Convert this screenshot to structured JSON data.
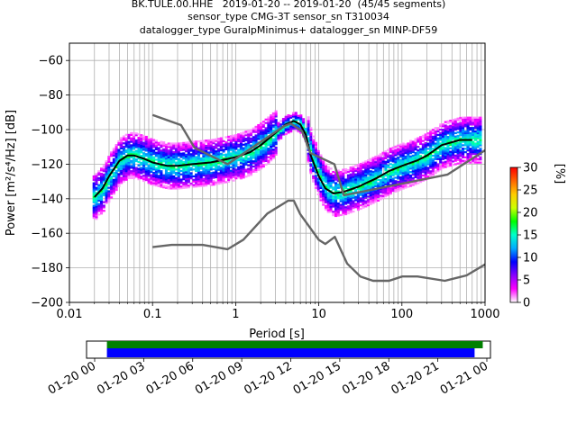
{
  "title": {
    "line1": "BK.TULE.00.HHE   2019-01-20 -- 2019-01-20  (45/45 segments)",
    "line2": "sensor_type CMG-3T sensor_sn T310034",
    "line3": "datalogger_type GuralpMinimus+ datalogger_sn MINP-DF59"
  },
  "colorbar": {
    "label": "[%]",
    "ticks": [
      "0",
      "5",
      "10",
      "15",
      "20",
      "25",
      "30"
    ],
    "stops": [
      "#ffffff",
      "#ff00ff",
      "#8800ff",
      "#0000ff",
      "#00aaff",
      "#00ffcc",
      "#00ff00",
      "#ccff00",
      "#ffcc00",
      "#ff6600",
      "#ff0000"
    ]
  },
  "timeline": {
    "ticks": [
      "01-20 00",
      "01-20 03",
      "01-20 06",
      "01-20 09",
      "01-20 12",
      "01-20 15",
      "01-20 18",
      "01-20 21",
      "01-21 00"
    ],
    "bar_green": {
      "start_hour": 0.75,
      "end_hour": 23.75,
      "color": "#008000"
    },
    "bar_blue": {
      "start_hour": 0.75,
      "end_hour": 23.25,
      "color": "#0000ff"
    }
  },
  "chart_data": {
    "type": "heatmap",
    "xlabel": "Period [s]",
    "ylabel": "Power [m²/s⁴/Hz] [dB]",
    "xscale": "log",
    "xlim": [
      0.01,
      1000
    ],
    "ylim": [
      -200,
      -50
    ],
    "xticks": [
      "0.01",
      "0.1",
      "1",
      "10",
      "100",
      "1000"
    ],
    "yticks": [
      "−60",
      "−80",
      "−100",
      "−120",
      "−140",
      "−160",
      "−180",
      "−200"
    ],
    "grid": true,
    "series": [
      {
        "name": "",
        "role": "mode",
        "color": "#000000",
        "x": [
          0.02,
          0.025,
          0.03,
          0.04,
          0.05,
          0.06,
          0.08,
          0.1,
          0.15,
          0.2,
          0.3,
          0.5,
          0.8,
          1,
          1.5,
          2,
          3,
          4,
          5,
          6,
          7,
          8,
          10,
          12,
          15,
          20,
          30,
          50,
          70,
          100,
          150,
          200,
          300,
          500,
          700
        ],
        "y": [
          -139,
          -134,
          -127,
          -118,
          -115,
          -115,
          -117,
          -119,
          -121,
          -121,
          -120,
          -119,
          -117,
          -116,
          -113,
          -109,
          -102,
          -97,
          -95,
          -97,
          -103,
          -115,
          -127,
          -134,
          -137,
          -136,
          -133,
          -128,
          -124,
          -121,
          -118,
          -115,
          -109,
          -106,
          -106
        ]
      },
      {
        "name": "",
        "role": "NHNM",
        "color": "#666666",
        "x": [
          0.1,
          0.22,
          0.32,
          0.8,
          3.8,
          4.6,
          6.3,
          7.9,
          15.4,
          20,
          354.8,
          1000
        ],
        "y": [
          -91.5,
          -97.4,
          -110.5,
          -120,
          -98,
          -96.5,
          -101,
          -113.5,
          -120,
          -138,
          -126,
          -112
        ]
      },
      {
        "name": "",
        "role": "NLNM",
        "color": "#666666",
        "x": [
          0.1,
          0.17,
          0.4,
          0.8,
          1.24,
          2.4,
          4.3,
          5,
          6,
          10,
          12,
          15.6,
          21.9,
          31.6,
          45,
          70,
          101,
          154,
          328,
          600,
          1000
        ],
        "y": [
          -168,
          -166.7,
          -166.7,
          -169.2,
          -163.7,
          -148.6,
          -141.1,
          -141.1,
          -149,
          -163.8,
          -166.2,
          -162.1,
          -177.5,
          -185,
          -187.5,
          -187.5,
          -185,
          -185,
          -187.5,
          -184.4,
          -178
        ]
      }
    ]
  }
}
